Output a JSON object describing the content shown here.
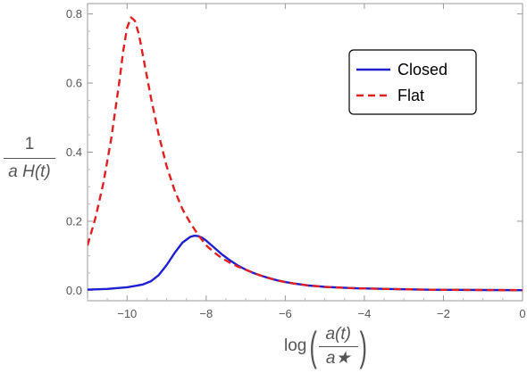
{
  "chart_data": {
    "type": "line",
    "title": "",
    "xlabel": "log(a(t)/a★)",
    "ylabel": "1/(a H(t))",
    "ylabel_parts": {
      "num": "1",
      "den": "a H(t)"
    },
    "xlabel_parts": {
      "prefix": "log",
      "lparen": "(",
      "num": "a(t)",
      "den": "a★",
      "rparen": ")"
    },
    "xlim": [
      -11,
      0
    ],
    "ylim": [
      -0.03,
      0.83
    ],
    "xticks": [
      -10,
      -8,
      -6,
      -4,
      -2,
      0
    ],
    "xtick_labels": [
      "−10",
      "−8",
      "−6",
      "−4",
      "−2",
      "0"
    ],
    "yticks": [
      0.0,
      0.2,
      0.4,
      0.6,
      0.8
    ],
    "ytick_labels": [
      "0.0",
      "0.2",
      "0.4",
      "0.6",
      "0.8"
    ],
    "grid": false,
    "legend_position": "top-right",
    "series": [
      {
        "name": "Closed",
        "color": "#1f1fcf",
        "style": "solid",
        "x": [
          -11,
          -10.5,
          -10,
          -9.8,
          -9.6,
          -9.4,
          -9.2,
          -9.0,
          -8.8,
          -8.6,
          -8.4,
          -8.3,
          -8.2,
          -8.1,
          -8.0,
          -7.9,
          -7.8,
          -7.6,
          -7.4,
          -7.2,
          -7.0,
          -6.8,
          -6.6,
          -6.4,
          -6.2,
          -6.0,
          -5.8,
          -5.6,
          -5.4,
          -5.2,
          -5.0,
          -4.6,
          -4.2,
          -3.8,
          -3.4,
          -3.0,
          -2.5,
          -2.0,
          -1.0,
          0
        ],
        "y": [
          0.002,
          0.004,
          0.009,
          0.013,
          0.017,
          0.026,
          0.044,
          0.073,
          0.108,
          0.138,
          0.155,
          0.158,
          0.157,
          0.152,
          0.144,
          0.134,
          0.124,
          0.104,
          0.087,
          0.072,
          0.06,
          0.05,
          0.042,
          0.035,
          0.029,
          0.024,
          0.02,
          0.017,
          0.014,
          0.012,
          0.01,
          0.008,
          0.006,
          0.005,
          0.004,
          0.003,
          0.002,
          0.0015,
          0.001,
          0.0005
        ]
      },
      {
        "name": "Flat",
        "color": "#e02020",
        "style": "dashed",
        "x": [
          -11,
          -10.8,
          -10.6,
          -10.4,
          -10.2,
          -10.1,
          -10.0,
          -9.9,
          -9.8,
          -9.7,
          -9.6,
          -9.4,
          -9.2,
          -9.0,
          -8.8,
          -8.6,
          -8.4,
          -8.2,
          -8.0,
          -7.8,
          -7.6,
          -7.4,
          -7.2,
          -7.0,
          -6.8,
          -6.6,
          -6.4,
          -6.2,
          -6.0,
          -5.8,
          -5.6,
          -5.4,
          -5.2,
          -5.0,
          -4.6,
          -4.2,
          -3.8,
          -3.4,
          -3.0,
          -2.5,
          -2.0,
          -1.0,
          0
        ],
        "y": [
          0.13,
          0.21,
          0.31,
          0.44,
          0.6,
          0.69,
          0.76,
          0.79,
          0.78,
          0.74,
          0.68,
          0.56,
          0.45,
          0.36,
          0.29,
          0.235,
          0.195,
          0.16,
          0.13,
          0.11,
          0.093,
          0.08,
          0.069,
          0.06,
          0.05,
          0.042,
          0.035,
          0.029,
          0.024,
          0.02,
          0.017,
          0.014,
          0.012,
          0.01,
          0.008,
          0.006,
          0.005,
          0.004,
          0.003,
          0.002,
          0.0015,
          0.001,
          0.0005
        ]
      }
    ]
  }
}
